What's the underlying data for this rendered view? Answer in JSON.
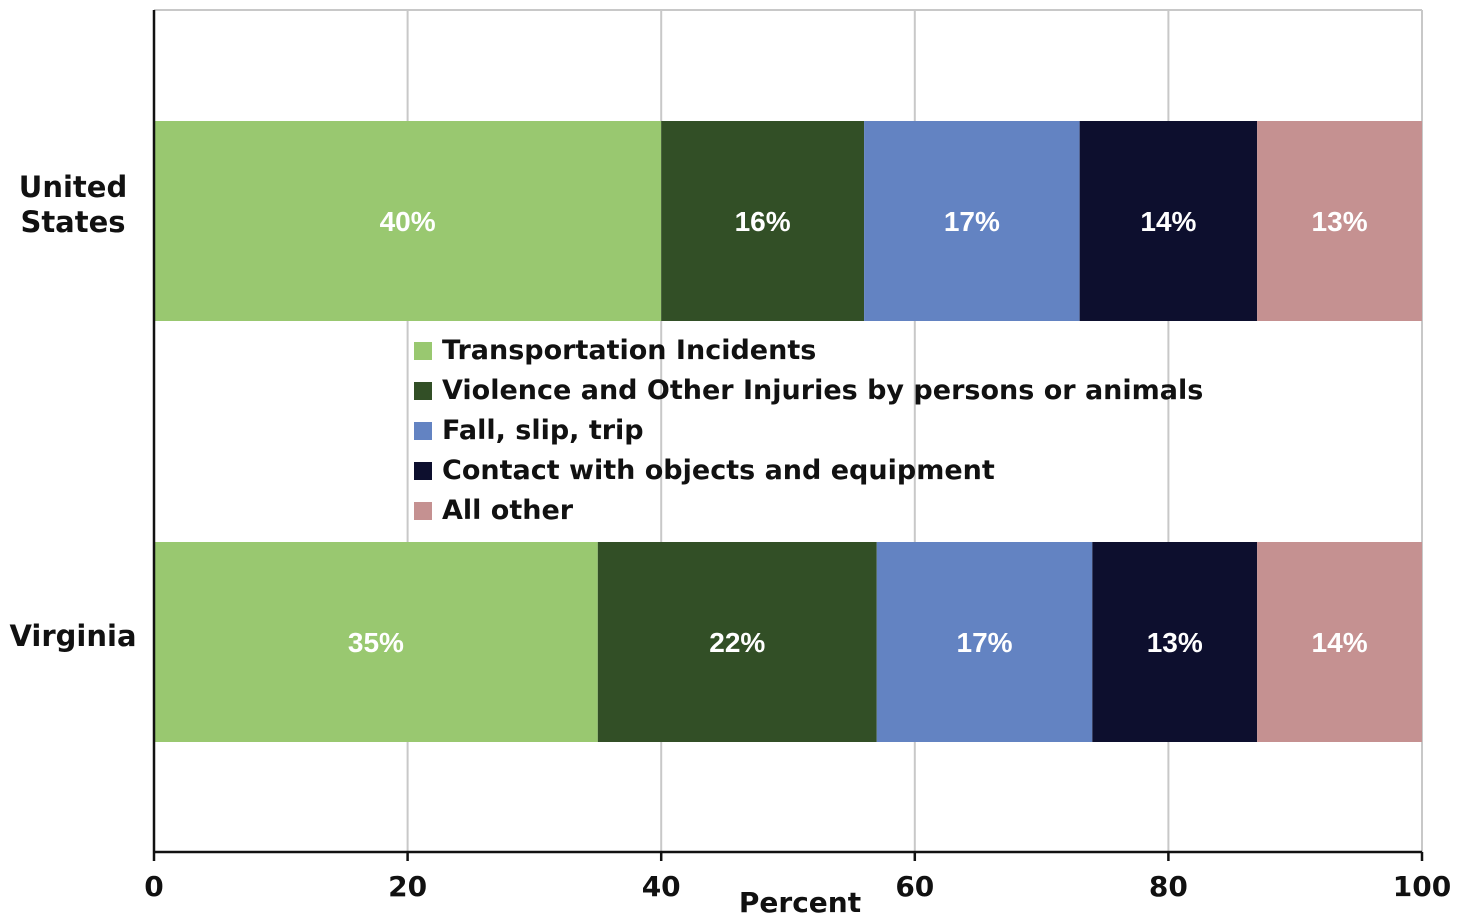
{
  "chart_data": {
    "type": "bar",
    "orientation": "horizontal",
    "stacked": true,
    "categories": [
      "United\nStates",
      "Virginia"
    ],
    "series": [
      {
        "name": "Transportation Incidents",
        "color": "#99c870",
        "values": [
          40,
          35
        ],
        "labels": [
          "40%",
          "35%"
        ]
      },
      {
        "name": "Violence and Other Injuries by persons or animals",
        "color": "#324f26",
        "values": [
          16,
          22
        ],
        "labels": [
          "16%",
          "22%"
        ]
      },
      {
        "name": "Fall, slip, trip",
        "color": "#6383c2",
        "values": [
          17,
          17
        ],
        "labels": [
          "17%",
          "17%"
        ]
      },
      {
        "name": "Contact with objects and equipment",
        "color": "#0d0f2e",
        "values": [
          14,
          13
        ],
        "labels": [
          "14%",
          "13%"
        ]
      },
      {
        "name": "All other",
        "color": "#c59191",
        "values": [
          13,
          14
        ],
        "labels": [
          "13%",
          "14%"
        ]
      }
    ],
    "xlabel": "Percent",
    "ylabel": "",
    "xlim": [
      0,
      100
    ],
    "xticks": [
      "0",
      "20",
      "40",
      "60",
      "80",
      "100"
    ],
    "grid": true,
    "legend_position": "center"
  }
}
